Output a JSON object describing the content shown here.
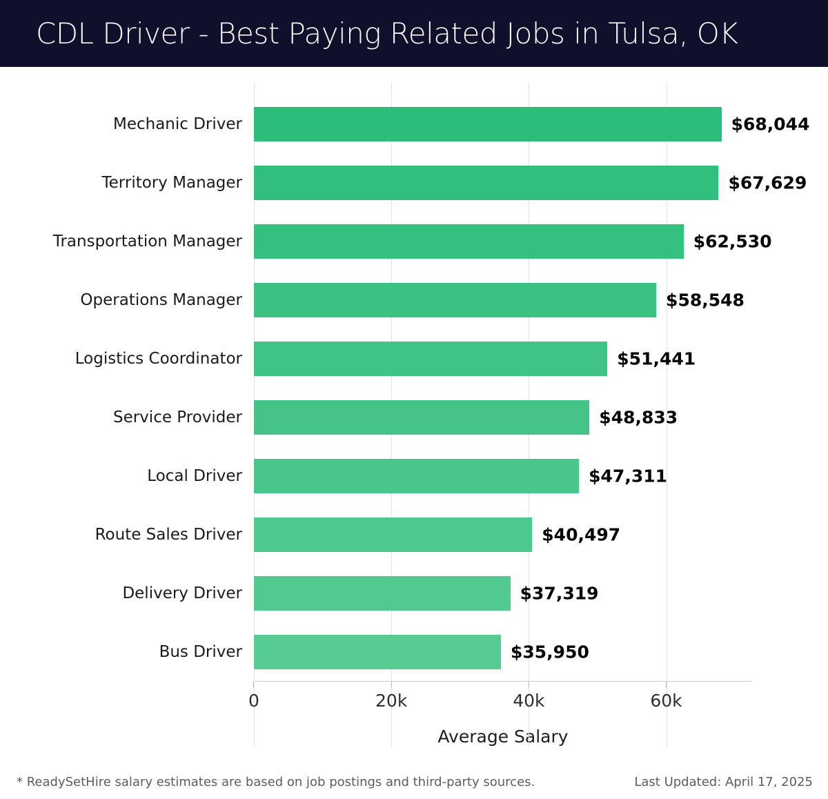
{
  "header": {
    "title": "CDL Driver - Best Paying Related Jobs in Tulsa, OK"
  },
  "chart_data": {
    "type": "bar",
    "orientation": "horizontal",
    "title": "CDL Driver - Best Paying Related Jobs in Tulsa, OK",
    "categories": [
      "Mechanic Driver",
      "Territory Manager",
      "Transportation Manager",
      "Operations Manager",
      "Logistics Coordinator",
      "Service Provider",
      "Local Driver",
      "Route Sales Driver",
      "Delivery Driver",
      "Bus Driver"
    ],
    "values": [
      68044,
      67629,
      62530,
      58548,
      51441,
      48833,
      47311,
      40497,
      37319,
      35950
    ],
    "value_labels": [
      "$68,044",
      "$67,629",
      "$62,530",
      "$58,548",
      "$51,441",
      "$48,833",
      "$47,311",
      "$40,497",
      "$37,319",
      "$35,950"
    ],
    "bar_colors": [
      "#2dbd7a",
      "#32bf7d",
      "#36c080",
      "#3bc282",
      "#40c485",
      "#44c587",
      "#49c78a",
      "#4ec98d",
      "#52ca8f",
      "#57cc92"
    ],
    "xlabel": "Average Salary",
    "ylabel": "",
    "xlim": [
      0,
      72500
    ],
    "xticks": [
      {
        "value": 0,
        "label": "0"
      },
      {
        "value": 20000,
        "label": "20k"
      },
      {
        "value": 40000,
        "label": "40k"
      },
      {
        "value": 60000,
        "label": "60k"
      }
    ],
    "grid": "vertical",
    "gridline_color": "#e2e2e2",
    "legend": "none"
  },
  "footer": {
    "note": "* ReadySetHire salary estimates are based on job postings and third-party sources.",
    "last_updated": "Last Updated: April 17, 2025"
  }
}
